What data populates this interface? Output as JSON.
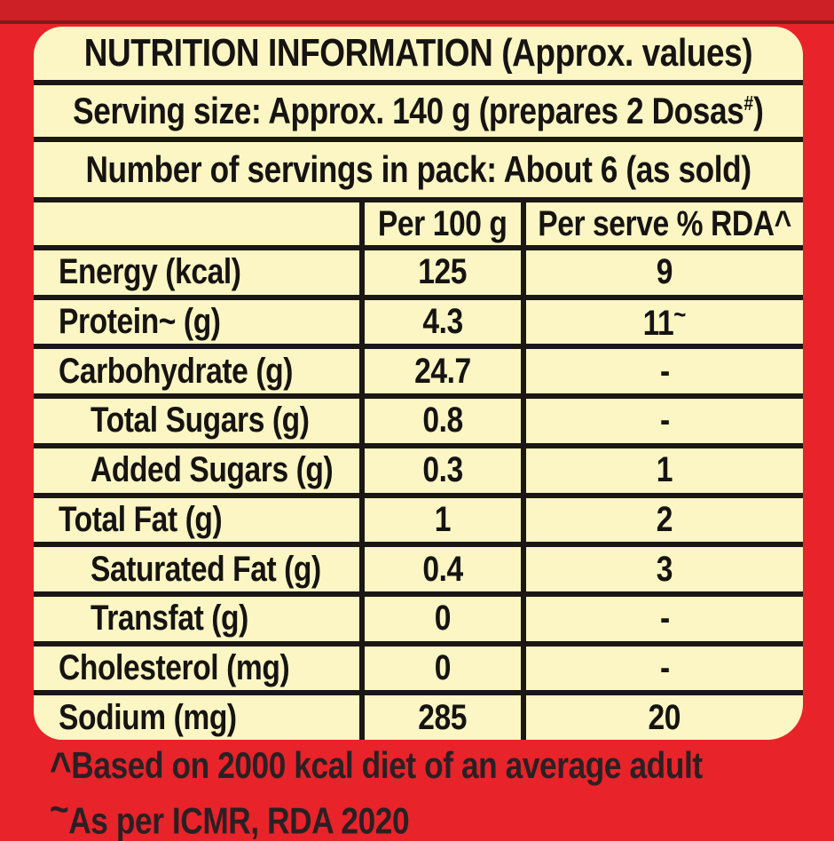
{
  "colors": {
    "background_red": "#e8232a",
    "top_band_red": "#cc1f26",
    "panel_cream": "#fbf6c3",
    "line_black": "#1b1715",
    "text_black": "#161312",
    "footnote_ink": "#2a2023"
  },
  "table": {
    "title": "NUTRITION INFORMATION (Approx. values)",
    "serving_size": {
      "prefix": "Serving size: Approx. 140 g (prepares 2 Dosas",
      "sup": "#",
      "suffix": ")"
    },
    "servings_in_pack": "Number of servings in pack: About 6 (as sold)",
    "columns": {
      "label": "",
      "per_100g": "Per 100 g",
      "per_serve_rda": "Per serve % RDA^"
    },
    "rows": [
      {
        "label": "Energy (kcal)",
        "per100": "125",
        "rda": "9",
        "indent": false
      },
      {
        "label": "Protein~ (g)",
        "per100": "4.3",
        "rda": "11~",
        "indent": false
      },
      {
        "label": "Carbohydrate (g)",
        "per100": "24.7",
        "rda": "-",
        "indent": false
      },
      {
        "label": "Total Sugars (g)",
        "per100": "0.8",
        "rda": "-",
        "indent": true
      },
      {
        "label": "Added Sugars (g)",
        "per100": "0.3",
        "rda": "1",
        "indent": true
      },
      {
        "label": "Total Fat (g)",
        "per100": "1",
        "rda": "2",
        "indent": false
      },
      {
        "label": "Saturated Fat (g)",
        "per100": "0.4",
        "rda": "3",
        "indent": true
      },
      {
        "label": "Transfat (g)",
        "per100": "0",
        "rda": "-",
        "indent": true
      },
      {
        "label": "Cholesterol (mg)",
        "per100": "0",
        "rda": "-",
        "indent": false
      },
      {
        "label": "Sodium (mg)",
        "per100": "285",
        "rda": "20",
        "indent": false
      }
    ]
  },
  "footnotes": [
    {
      "marker": "^",
      "text": "Based on 2000 kcal diet of an average adult"
    },
    {
      "marker": "~",
      "text": "As per ICMR, RDA 2020"
    }
  ]
}
